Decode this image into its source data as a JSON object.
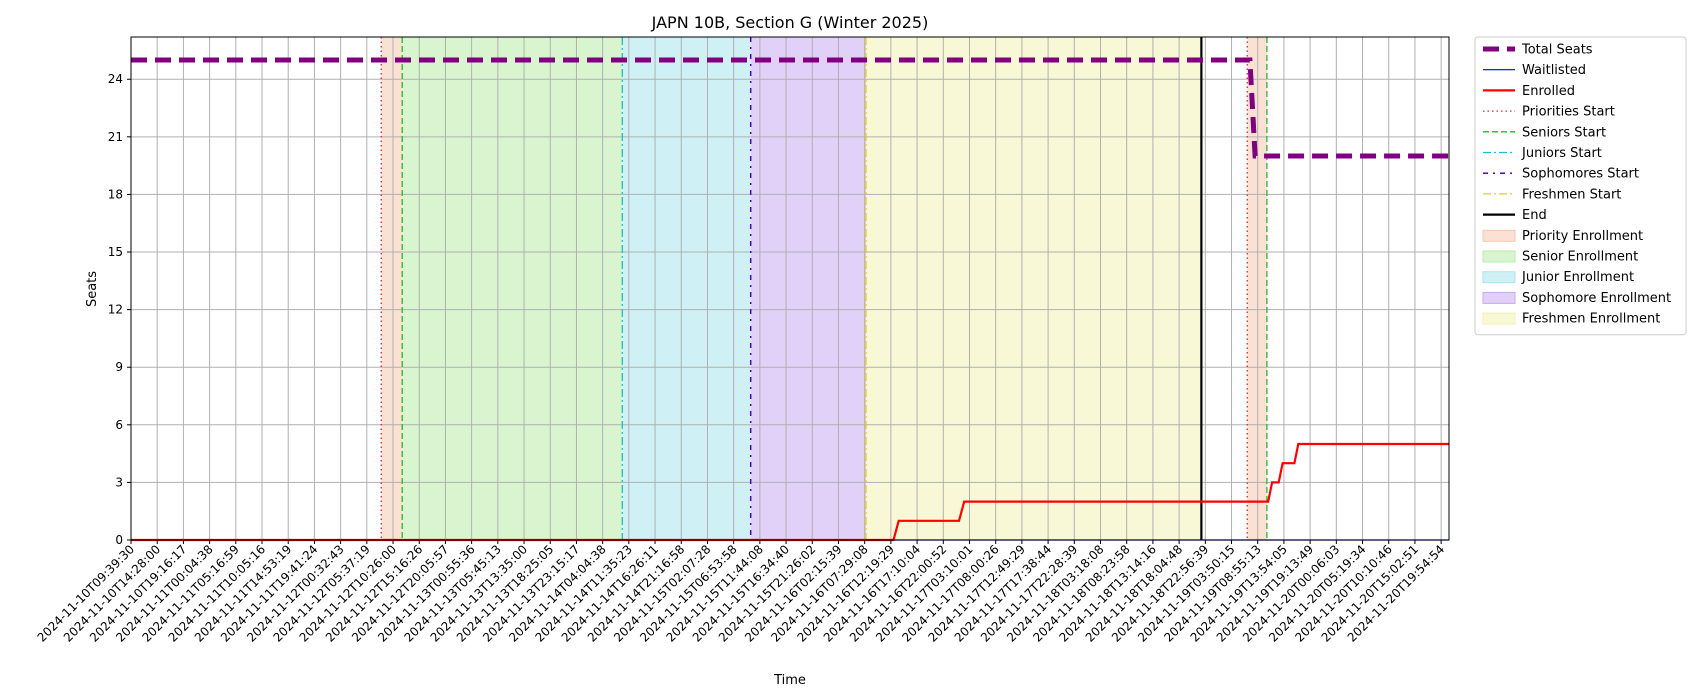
{
  "chart_data": {
    "type": "line",
    "title": "JAPN 10B, Section G (Winter 2025)",
    "xlabel": "Time",
    "ylabel": "Seats",
    "ylim": [
      0,
      26.2
    ],
    "yticks": [
      0,
      3,
      6,
      9,
      12,
      15,
      18,
      21,
      24
    ],
    "grid": true,
    "legend_position": "outside-right",
    "x_ticks": [
      "2024-11-10T09:39:30",
      "2024-11-10T14:28:00",
      "2024-11-10T19:16:17",
      "2024-11-11T00:04:38",
      "2024-11-11T05:16:59",
      "2024-11-11T10:05:16",
      "2024-11-11T14:53:19",
      "2024-11-11T19:41:24",
      "2024-11-12T00:32:43",
      "2024-11-12T05:37:19",
      "2024-11-12T10:26:00",
      "2024-11-12T15:16:26",
      "2024-11-12T20:05:57",
      "2024-11-13T00:55:36",
      "2024-11-13T05:45:13",
      "2024-11-13T13:35:00",
      "2024-11-13T18:25:05",
      "2024-11-13T23:15:17",
      "2024-11-14T04:04:38",
      "2024-11-14T11:35:23",
      "2024-11-14T16:26:11",
      "2024-11-14T21:16:58",
      "2024-11-15T02:07:28",
      "2024-11-15T06:53:58",
      "2024-11-15T11:44:08",
      "2024-11-15T16:34:40",
      "2024-11-15T21:26:02",
      "2024-11-16T02:15:39",
      "2024-11-16T07:29:08",
      "2024-11-16T12:19:29",
      "2024-11-16T17:10:04",
      "2024-11-16T22:00:52",
      "2024-11-17T03:10:01",
      "2024-11-17T08:00:26",
      "2024-11-17T12:49:29",
      "2024-11-17T17:38:44",
      "2024-11-17T22:28:39",
      "2024-11-18T03:18:08",
      "2024-11-18T08:23:58",
      "2024-11-18T13:14:16",
      "2024-11-18T18:04:48",
      "2024-11-18T22:56:39",
      "2024-11-19T03:50:15",
      "2024-11-19T08:55:13",
      "2024-11-19T13:54:05",
      "2024-11-19T19:13:49",
      "2024-11-20T00:06:03",
      "2024-11-20T05:19:34",
      "2024-11-20T10:10:46",
      "2024-11-20T15:02:51",
      "2024-11-20T19:54:54"
    ],
    "x_range": [
      0,
      50.3
    ],
    "series": [
      {
        "name": "Total Seats",
        "color": "#800080",
        "style": "dashed-thick",
        "points": [
          [
            0,
            25
          ],
          [
            42.7,
            25
          ],
          [
            42.9,
            20
          ],
          [
            50.3,
            20
          ]
        ]
      },
      {
        "name": "Waitlisted",
        "color": "#0000ff",
        "style": "solid-thin",
        "points": [
          [
            0,
            0
          ],
          [
            50.3,
            0
          ]
        ]
      },
      {
        "name": "Enrolled",
        "color": "#ff0000",
        "style": "solid",
        "points": [
          [
            0,
            0
          ],
          [
            29.1,
            0
          ],
          [
            29.3,
            1
          ],
          [
            31.6,
            1
          ],
          [
            31.8,
            2
          ],
          [
            43.4,
            2
          ],
          [
            43.55,
            3
          ],
          [
            43.8,
            3
          ],
          [
            43.95,
            4
          ],
          [
            44.4,
            4
          ],
          [
            44.55,
            5
          ],
          [
            50.3,
            5
          ]
        ]
      }
    ],
    "markers": [
      {
        "name": "Priorities Start",
        "x": 9.55,
        "color": "#d62728",
        "style": "dotted"
      },
      {
        "name": "Seniors Start",
        "x": 10.35,
        "color": "#22bb22",
        "style": "dashed"
      },
      {
        "name": "Juniors Start",
        "x": 18.75,
        "color": "#17becf",
        "style": "dashdot"
      },
      {
        "name": "Sophomores Start",
        "x": 23.65,
        "color": "#5500cc",
        "style": "dashdot-sparse"
      },
      {
        "name": "Freshmen Start",
        "x": 28.05,
        "color": "#e0d020",
        "style": "dashdot"
      },
      {
        "name": "End",
        "x": 40.85,
        "color": "#000000",
        "style": "solid"
      },
      {
        "name": "Priorities Start",
        "x": 42.6,
        "color": "#d62728",
        "style": "dotted"
      },
      {
        "name": "Seniors Start",
        "x": 43.35,
        "color": "#22bb22",
        "style": "dashed"
      }
    ],
    "bands": [
      {
        "name": "Priority Enrollment",
        "from": 9.55,
        "to": 10.35,
        "color": "#f5c9b0"
      },
      {
        "name": "Senior Enrollment",
        "from": 10.35,
        "to": 18.75,
        "color": "#b8edaa"
      },
      {
        "name": "Junior Enrollment",
        "from": 18.75,
        "to": 23.65,
        "color": "#a8e6ec"
      },
      {
        "name": "Sophomore Enrollment",
        "from": 23.65,
        "to": 28.05,
        "color": "#c8aaf0"
      },
      {
        "name": "Freshmen Enrollment",
        "from": 28.05,
        "to": 40.85,
        "color": "#f2f2b4"
      },
      {
        "name": "Priority Enrollment",
        "from": 42.6,
        "to": 43.35,
        "color": "#f5c9b0"
      }
    ],
    "legend": [
      {
        "label": "Total Seats",
        "kind": "line",
        "color": "#800080",
        "style": "dashed-thick"
      },
      {
        "label": "Waitlisted",
        "kind": "line",
        "color": "#0000ff",
        "style": "solid-thin"
      },
      {
        "label": "Enrolled",
        "kind": "line",
        "color": "#ff0000",
        "style": "solid"
      },
      {
        "label": "Priorities Start",
        "kind": "line",
        "color": "#d62728",
        "style": "dotted"
      },
      {
        "label": "Seniors Start",
        "kind": "line",
        "color": "#22bb22",
        "style": "dashed"
      },
      {
        "label": "Juniors Start",
        "kind": "line",
        "color": "#17becf",
        "style": "dashdot"
      },
      {
        "label": "Sophomores Start",
        "kind": "line",
        "color": "#5500cc",
        "style": "dashdot-sparse"
      },
      {
        "label": "Freshmen Start",
        "kind": "line",
        "color": "#e0d020",
        "style": "dashdot"
      },
      {
        "label": "End",
        "kind": "line",
        "color": "#000000",
        "style": "solid"
      },
      {
        "label": "Priority Enrollment",
        "kind": "patch",
        "color": "#f5c9b0"
      },
      {
        "label": "Senior Enrollment",
        "kind": "patch",
        "color": "#b8edaa"
      },
      {
        "label": "Junior Enrollment",
        "kind": "patch",
        "color": "#a8e6ec"
      },
      {
        "label": "Sophomore Enrollment",
        "kind": "patch",
        "color": "#c8aaf0"
      },
      {
        "label": "Freshmen Enrollment",
        "kind": "patch",
        "color": "#f2f2b4"
      }
    ]
  }
}
